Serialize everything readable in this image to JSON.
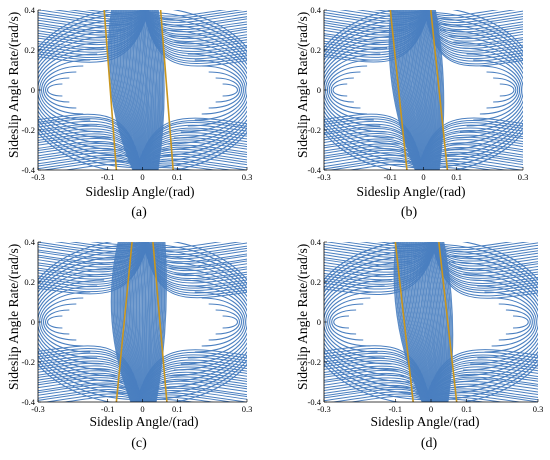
{
  "chart_data": [
    {
      "type": "line",
      "panel_label": "(a)",
      "xlabel": "Sideslip Angle/(rad)",
      "ylabel": "Sideslip Angle Rate/(rad/s)",
      "xlim": [
        -0.3,
        0.3
      ],
      "ylim": [
        -0.4,
        0.4
      ],
      "x_ticks": [
        "-0.3",
        "-0.1",
        "0",
        "0.1",
        "0.3"
      ],
      "y_ticks": [
        "0.4",
        "0.2",
        "0",
        "-0.2",
        "-0.4"
      ],
      "trajectory_color": "#4a7fc0",
      "stability_boundaries": [
        {
          "color": "#c9961e",
          "points": [
            [
              -0.11,
              0.4
            ],
            [
              -0.075,
              -0.4
            ]
          ]
        },
        {
          "color": "#c9961e",
          "points": [
            [
              0.052,
              0.4
            ],
            [
              0.088,
              -0.4
            ]
          ]
        }
      ]
    },
    {
      "type": "line",
      "panel_label": "(b)",
      "xlabel": "Sideslip Angle/(rad)",
      "ylabel": "Sideslip Angle Rate/(rad/s)",
      "xlim": [
        -0.3,
        0.3
      ],
      "ylim": [
        -0.4,
        0.4
      ],
      "x_ticks": [
        "-0.3",
        "-0.1",
        "0",
        "0.1",
        "0.3"
      ],
      "y_ticks": [
        "0.4",
        "0.2",
        "0",
        "-0.2",
        "-0.4"
      ],
      "trajectory_color": "#4a7fc0",
      "stability_boundaries": [
        {
          "color": "#c9961e",
          "points": [
            [
              -0.1,
              0.4
            ],
            [
              -0.05,
              -0.4
            ]
          ]
        },
        {
          "color": "#c9961e",
          "points": [
            [
              0.022,
              0.4
            ],
            [
              0.072,
              -0.4
            ]
          ]
        }
      ]
    },
    {
      "type": "line",
      "panel_label": "(c)",
      "xlabel": "Sideslip Angle/(rad)",
      "ylabel": "Sideslip Angle Rate/(rad/s)",
      "xlim": [
        -0.3,
        0.3
      ],
      "ylim": [
        -0.4,
        0.4
      ],
      "x_ticks": [
        "-0.3",
        "-0.1",
        "0",
        "0.1",
        "0.3"
      ],
      "y_ticks": [
        "0.4",
        "0.2",
        "0",
        "-0.2",
        "-0.4"
      ],
      "trajectory_color": "#4a7fc0",
      "stability_boundaries": [
        {
          "color": "#c9961e",
          "points": [
            [
              -0.03,
              0.4
            ],
            [
              -0.075,
              -0.4
            ]
          ]
        },
        {
          "color": "#c9961e",
          "points": [
            [
              0.03,
              0.4
            ],
            [
              0.07,
              -0.4
            ]
          ]
        }
      ]
    },
    {
      "type": "line",
      "panel_label": "(d)",
      "xlabel": "Sideslip Angle/(rad)",
      "ylabel": "Sideslip Angle Rate/(rad/s)",
      "xlim": [
        -0.3,
        0.3
      ],
      "ylim": [
        -0.4,
        0.4
      ],
      "x_ticks": [
        "-0.3",
        "-0.1",
        "0",
        "0.1",
        "0.3"
      ],
      "y_ticks": [
        "0.4",
        "0.2",
        "0",
        "-0.2",
        "-0.4"
      ],
      "trajectory_color": "#4a7fc0",
      "stability_boundaries": [
        {
          "color": "#c9961e",
          "points": [
            [
              -0.1,
              0.4
            ],
            [
              -0.05,
              -0.4
            ]
          ]
        },
        {
          "color": "#c9961e",
          "points": [
            [
              0.022,
              0.4
            ],
            [
              0.072,
              -0.4
            ]
          ]
        }
      ]
    }
  ]
}
